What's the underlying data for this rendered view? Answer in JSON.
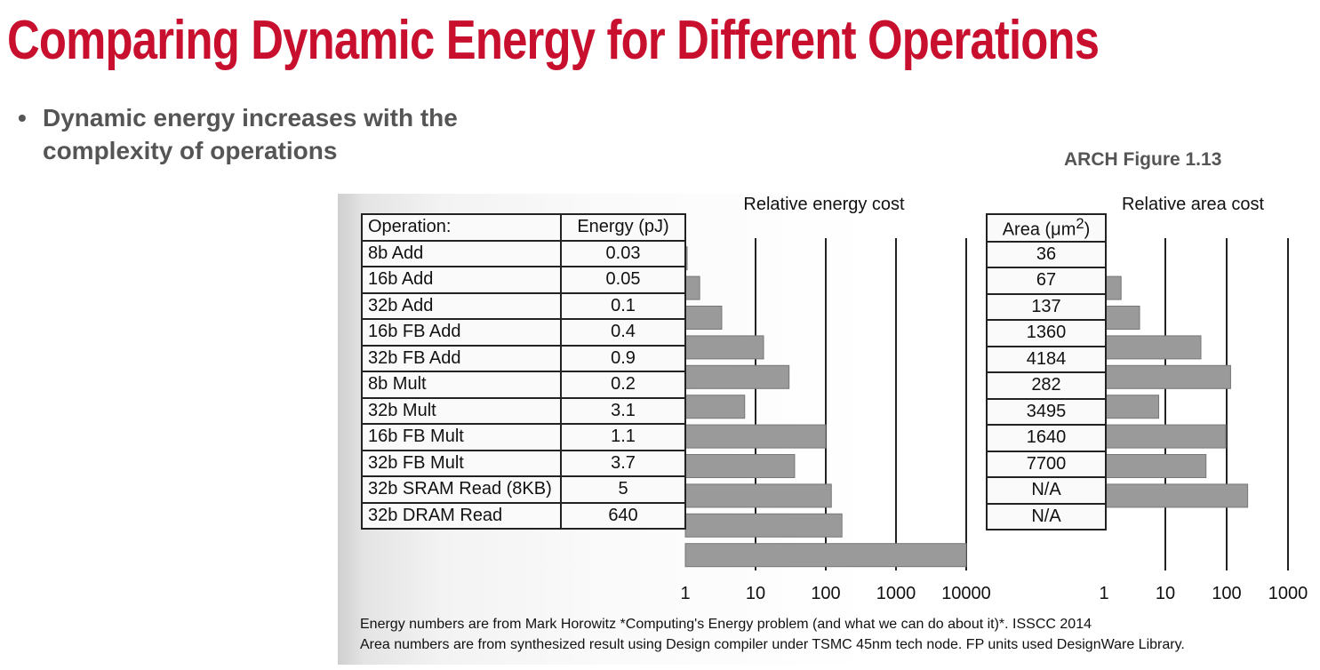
{
  "title": "Comparing Dynamic Energy for Different Operations",
  "bullet": {
    "symbol": "•",
    "text": "Dynamic energy increases with the complexity of operations"
  },
  "figure_ref": "ARCH Figure 1.13",
  "footnotes": [
    "Energy numbers are from Mark Horowitz *Computing's Energy problem (and what we can do about it)*. ISSCC 2014",
    "Area numbers are from synthesized result using Design compiler under TSMC 45nm tech node. FP units used DesignWare Library."
  ],
  "chart_data": [
    {
      "type": "bar",
      "orientation": "horizontal",
      "title": "Relative energy cost",
      "xscale": "log",
      "xlim": [
        1,
        10000
      ],
      "xticks": [
        "1",
        "10",
        "100",
        "1000",
        "10000"
      ],
      "grid": true,
      "table_headers": [
        "Operation:",
        "Energy (pJ)"
      ],
      "categories": [
        "8b Add",
        "16b Add",
        "32b Add",
        "16b FB Add",
        "32b FB Add",
        "8b Mult",
        "32b Mult",
        "16b FB Mult",
        "32b FB Mult",
        "32b SRAM Read (8KB)",
        "32b DRAM Read"
      ],
      "values_label": [
        "0.03",
        "0.05",
        "0.1",
        "0.4",
        "0.9",
        "0.2",
        "3.1",
        "1.1",
        "3.7",
        "5",
        "640"
      ],
      "bar_values": [
        1.03,
        1.6,
        3.3,
        13,
        30,
        7,
        100,
        36,
        120,
        170,
        10000
      ]
    },
    {
      "type": "bar",
      "orientation": "horizontal",
      "title": "Relative area cost",
      "xscale": "log",
      "xlim": [
        1,
        1000
      ],
      "xticks": [
        "1",
        "10",
        "100",
        "1000"
      ],
      "grid": true,
      "table_headers": [
        "Area (μm",
        "2",
        ")"
      ],
      "values_label": [
        "36",
        "67",
        "137",
        "1360",
        "4184",
        "282",
        "3495",
        "1640",
        "7700",
        "N/A",
        "N/A"
      ],
      "bar_values": [
        null,
        1.9,
        3.8,
        38,
        116,
        7.8,
        97,
        46,
        220,
        null,
        null
      ]
    }
  ]
}
